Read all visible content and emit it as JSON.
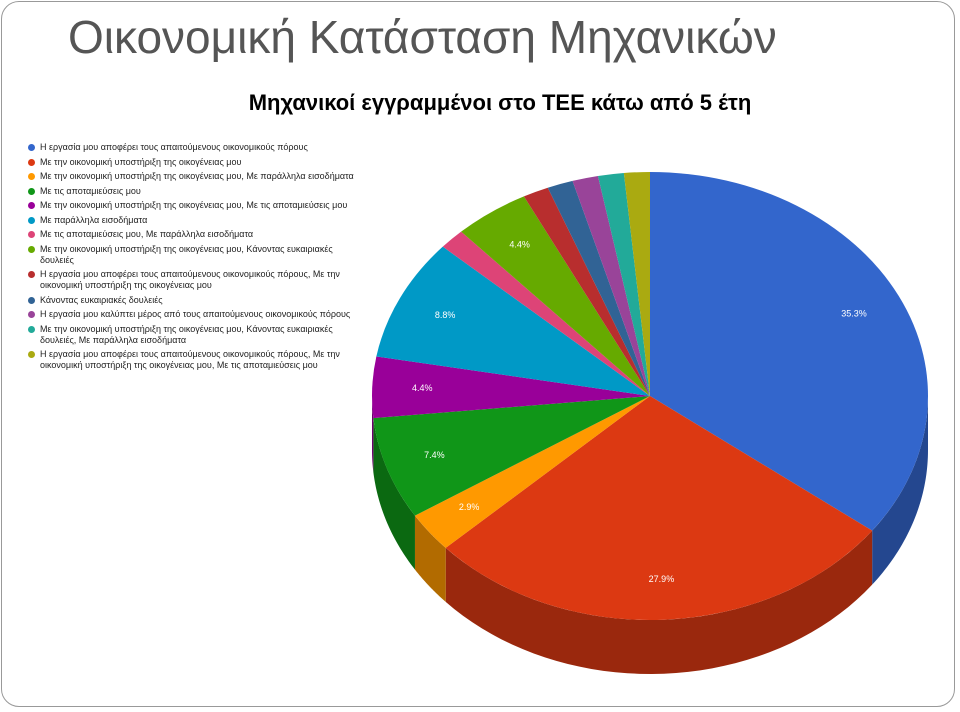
{
  "chart_data": {
    "type": "pie",
    "title": "Οικονομική Κατάσταση Μηχανικών",
    "subtitle": "Μηχανικοί εγγραμμένοι στο ΤΕΕ κάτω από 5 έτη",
    "categories": [
      "Η εργασία μου αποφέρει τους απαιτούμενους οικονομικούς πόρους",
      "Με την οικονομική υποστήριξη της οικογένειας μου",
      "Με την οικονομική υποστήριξη της οικογένειας μου, Με παράλληλα εισοδήματα",
      "Με τις αποταμιεύσεις μου",
      "Με την οικονομική υποστήριξη της οικογένειας μου, Με τις αποταμιεύσεις μου",
      "Με παράλληλα εισοδήματα",
      "Με τις αποταμιεύσεις μου, Με παράλληλα εισοδήματα",
      "Με την οικονομική υποστήριξη της οικογένειας μου, Κάνοντας ευκαιριακές δουλειές",
      "Η εργασία μου αποφέρει τους απαιτούμενους οικονομικούς πόρους, Με την οικονομική υποστήριξη της οικογένειας μου",
      "Κάνοντας ευκαιριακές δουλειές",
      "Η εργασία μου καλύπτει μέρος από τους απαιτούμενους οικονομικούς πόρους",
      "Με την οικονομική υποστήριξη της οικογένειας μου, Κάνοντας ευκαιριακές δουλειές, Με παράλληλα εισοδήματα",
      "Η εργασία μου αποφέρει τους απαιτούμενους οικονομικούς πόρους, Με την οικονομική υποστήριξη της οικογένειας μου, Με τις αποταμιεύσεις μου"
    ],
    "values": [
      35.3,
      27.9,
      2.9,
      7.4,
      4.4,
      8.8,
      1.5,
      4.4,
      1.5,
      1.5,
      1.5,
      1.5,
      1.5
    ],
    "value_labels": [
      "35.3%",
      "27.9%",
      "2.9%",
      "7.4%",
      "4.4%",
      "8.8%",
      null,
      "4.4%",
      null,
      null,
      null,
      null,
      null
    ],
    "colors": [
      "#3366cc",
      "#dc3912",
      "#ff9900",
      "#109618",
      "#990099",
      "#0099c6",
      "#dd4477",
      "#66aa00",
      "#b82e2e",
      "#316395",
      "#994499",
      "#22aa99",
      "#aaaa11"
    ],
    "legend": "left"
  }
}
